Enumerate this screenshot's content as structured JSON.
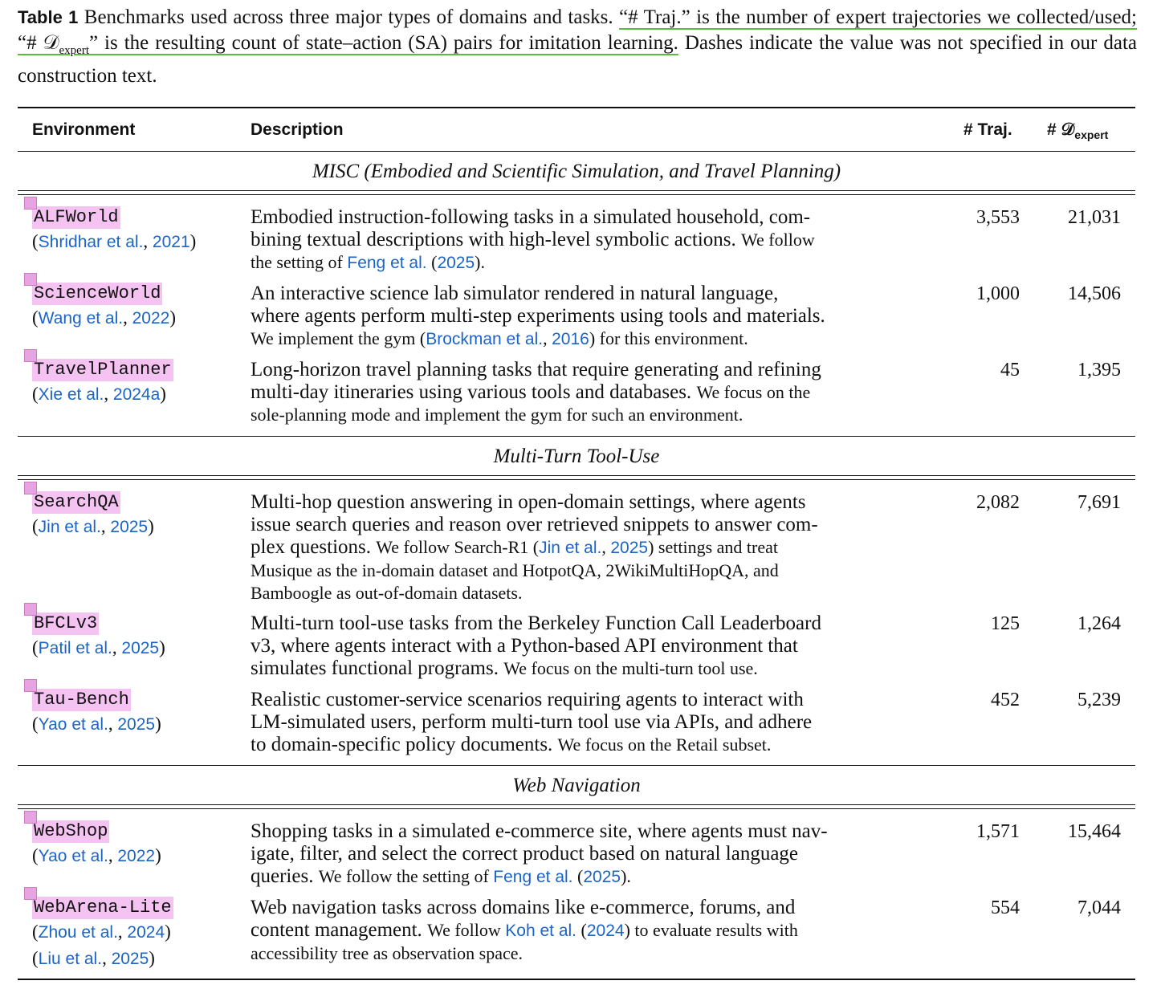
{
  "caption": {
    "label": "Table 1",
    "text_before": "Benchmarks used across three major types of domains and tasks. ",
    "highlight_a": "“# Traj.” is the number of expert trajectories we collected/used; “# ",
    "d_symbol": "𝒟",
    "d_sub": "expert",
    "highlight_b": "” is the resulting count of state–action (SA) pairs for imitation learning.",
    "text_after": " Dashes indicate the value was not specified in our data construction text."
  },
  "headers": {
    "environment": "Environment",
    "description": "Description",
    "traj": "# Traj.",
    "d_prefix": "# 𝒟",
    "d_sub": "expert"
  },
  "groups": [
    {
      "title": "MISC (Embodied and Scientific Simulation, and Travel Planning)",
      "rows": [
        {
          "name": "ALFWorld",
          "cite_open": "(",
          "cite_authors": "Shridhar et al.",
          "cite_year": "2021",
          "cite_close": ")",
          "cite2": null,
          "desc_big": [
            "Embodied instruction-following tasks in a simulated household, com-",
            "bining textual descriptions with high-level symbolic actions."
          ],
          "desc_big_tail": " We follow",
          "desc_small": [
            "the setting of "
          ],
          "desc_small_link": "Feng et al.",
          "desc_small_link_year": "2025",
          "desc_small_end": ".",
          "traj": "3,553",
          "sa": "21,031"
        }
      ]
    }
  ],
  "rows": [
    {
      "id": "alfworld",
      "name": "ALFWorld",
      "cite": [
        {
          "pre": "(",
          "authors": "Shridhar et al.",
          "sep": ", ",
          "year": "2021",
          "post": ")"
        }
      ],
      "lines": [
        {
          "size": "big",
          "parts": [
            {
              "t": "Embodied instruction-following tasks in a simulated household, com-"
            }
          ]
        },
        {
          "size": "big",
          "parts": [
            {
              "t": "bining textual descriptions with high-level symbolic actions. "
            },
            {
              "t": "We follow",
              "small": true
            }
          ]
        },
        {
          "size": "small",
          "parts": [
            {
              "t": "the setting of "
            },
            {
              "t": "Feng et al.",
              "link": true
            },
            {
              "t": " ("
            },
            {
              "t": "2025",
              "link": true
            },
            {
              "t": ")."
            }
          ]
        }
      ],
      "traj": "3,553",
      "sa": "21,031"
    },
    {
      "id": "scienceworld",
      "name": "ScienceWorld",
      "cite": [
        {
          "pre": "(",
          "authors": "Wang et al.",
          "sep": ", ",
          "year": "2022",
          "post": ")"
        }
      ],
      "lines": [
        {
          "size": "big",
          "parts": [
            {
              "t": "An interactive science lab simulator rendered in natural language,"
            }
          ]
        },
        {
          "size": "big",
          "parts": [
            {
              "t": "where agents perform multi-step experiments using tools and materials."
            }
          ]
        },
        {
          "size": "small",
          "parts": [
            {
              "t": "We implement the gym ("
            },
            {
              "t": "Brockman et al.",
              "link": true
            },
            {
              "t": ", "
            },
            {
              "t": "2016",
              "link": true
            },
            {
              "t": ") for this environment."
            }
          ]
        }
      ],
      "traj": "1,000",
      "sa": "14,506"
    },
    {
      "id": "travelplanner",
      "name": "TravelPlanner",
      "cite": [
        {
          "pre": "(",
          "authors": "Xie et al.",
          "sep": ", ",
          "year": "2024a",
          "post": ")"
        }
      ],
      "lines": [
        {
          "size": "big",
          "parts": [
            {
              "t": "Long-horizon travel planning tasks that require generating and refining"
            }
          ]
        },
        {
          "size": "big",
          "parts": [
            {
              "t": "multi-day itineraries using various tools and databases. "
            },
            {
              "t": "We focus on the",
              "small": true
            }
          ]
        },
        {
          "size": "small",
          "parts": [
            {
              "t": "sole-planning mode and implement the gym for such an environment."
            }
          ]
        }
      ],
      "traj": "45",
      "sa": "1,395"
    },
    {
      "id": "searchqa",
      "name": "SearchQA",
      "cite": [
        {
          "pre": "(",
          "authors": "Jin et al.",
          "sep": ", ",
          "year": "2025",
          "post": ")"
        }
      ],
      "lines": [
        {
          "size": "big",
          "parts": [
            {
              "t": "Multi-hop question answering in open-domain settings, where agents"
            }
          ]
        },
        {
          "size": "big",
          "parts": [
            {
              "t": "issue search queries and reason over retrieved snippets to answer com-"
            }
          ]
        },
        {
          "size": "big",
          "parts": [
            {
              "t": "plex questions. "
            },
            {
              "t": "We follow Search-R1 (",
              "small": true
            },
            {
              "t": "Jin et al.",
              "link": true
            },
            {
              "t": ", ",
              "small": true
            },
            {
              "t": "2025",
              "link": true
            },
            {
              "t": ") settings and treat",
              "small": true
            }
          ]
        },
        {
          "size": "small",
          "parts": [
            {
              "t": "Musique as the in-domain dataset and HotpotQA, 2WikiMultiHopQA, and"
            }
          ]
        },
        {
          "size": "small",
          "parts": [
            {
              "t": "Bamboogle as out-of-domain datasets."
            }
          ]
        }
      ],
      "traj": "2,082",
      "sa": "7,691"
    },
    {
      "id": "bfclv3",
      "name": "BFCLv3",
      "cite": [
        {
          "pre": "(",
          "authors": "Patil et al.",
          "sep": ", ",
          "year": "2025",
          "post": ")"
        }
      ],
      "lines": [
        {
          "size": "big",
          "parts": [
            {
              "t": "Multi-turn tool-use tasks from the Berkeley Function Call Leaderboard"
            }
          ]
        },
        {
          "size": "big",
          "parts": [
            {
              "t": "v3, where agents interact with a Python-based API environment that"
            }
          ]
        },
        {
          "size": "big",
          "parts": [
            {
              "t": "simulates functional programs. "
            },
            {
              "t": "We focus on the multi-turn tool use.",
              "small": true
            }
          ]
        }
      ],
      "traj": "125",
      "sa": "1,264"
    },
    {
      "id": "taubench",
      "name": "Tau-Bench",
      "cite": [
        {
          "pre": "(",
          "authors": "Yao et al.",
          "sep": ", ",
          "year": "2025",
          "post": ")"
        }
      ],
      "lines": [
        {
          "size": "big",
          "parts": [
            {
              "t": "Realistic customer-service scenarios requiring agents to interact with"
            }
          ]
        },
        {
          "size": "big",
          "parts": [
            {
              "t": "LM-simulated users, perform multi-turn tool use via APIs, and adhere"
            }
          ]
        },
        {
          "size": "big",
          "parts": [
            {
              "t": "to domain-specific policy documents. "
            },
            {
              "t": "We focus on the Retail subset.",
              "small": true
            }
          ]
        }
      ],
      "traj": "452",
      "sa": "5,239"
    },
    {
      "id": "webshop",
      "name": "WebShop",
      "cite": [
        {
          "pre": "(",
          "authors": "Yao et al.",
          "sep": ", ",
          "year": "2022",
          "post": ")"
        }
      ],
      "lines": [
        {
          "size": "big",
          "parts": [
            {
              "t": "Shopping tasks in a simulated e-commerce site, where agents must nav-"
            }
          ]
        },
        {
          "size": "big",
          "parts": [
            {
              "t": "igate, filter, and select the correct product based on natural language"
            }
          ]
        },
        {
          "size": "big",
          "parts": [
            {
              "t": "queries. "
            },
            {
              "t": "We follow the setting of ",
              "small": true
            },
            {
              "t": "Feng et al.",
              "link": true
            },
            {
              "t": " (",
              "small": true
            },
            {
              "t": "2025",
              "link": true
            },
            {
              "t": ").",
              "small": true
            }
          ]
        }
      ],
      "traj": "1,571",
      "sa": "15,464"
    },
    {
      "id": "webarenalite",
      "name": "WebArena-Lite",
      "cite": [
        {
          "pre": "(",
          "authors": "Zhou et al.",
          "sep": ", ",
          "year": "2024",
          "post": ")"
        },
        {
          "pre": "(",
          "authors": "Liu et al.",
          "sep": ", ",
          "year": "2025",
          "post": ")"
        }
      ],
      "lines": [
        {
          "size": "big",
          "parts": [
            {
              "t": "Web navigation tasks across domains like e-commerce, forums, and"
            }
          ]
        },
        {
          "size": "big",
          "parts": [
            {
              "t": "content management. "
            },
            {
              "t": "We follow ",
              "small": true
            },
            {
              "t": "Koh et al.",
              "link": true
            },
            {
              "t": " (",
              "small": true
            },
            {
              "t": "2024",
              "link": true
            },
            {
              "t": ") to evaluate results with",
              "small": true
            }
          ]
        },
        {
          "size": "small",
          "parts": [
            {
              "t": "accessibility tree as observation space."
            }
          ]
        }
      ],
      "traj": "554",
      "sa": "7,044"
    }
  ],
  "group_titles": {
    "misc": "MISC (Embodied and Scientific Simulation, and Travel Planning)",
    "tool": "Multi-Turn Tool-Use",
    "web": "Web Navigation"
  }
}
